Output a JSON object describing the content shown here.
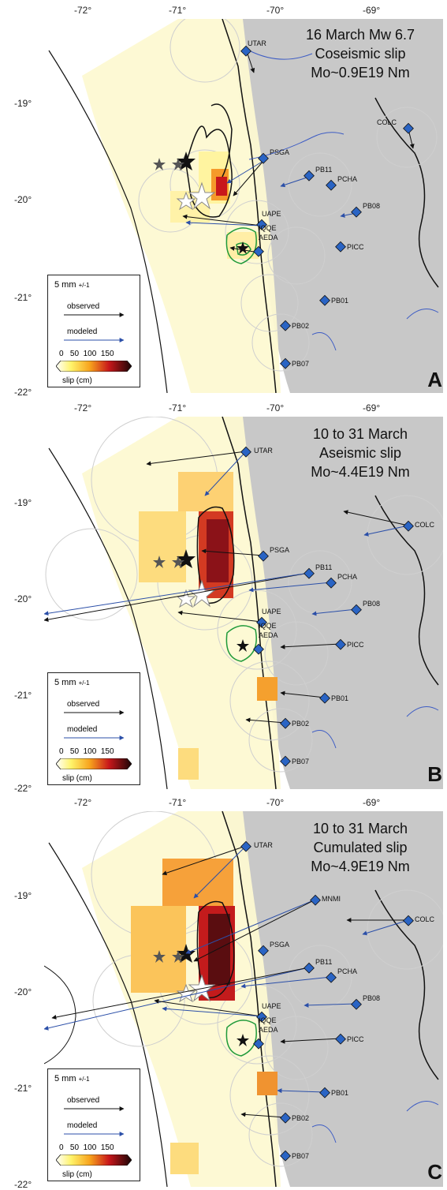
{
  "map": {
    "lon_ticks": [
      "-72°",
      "-71°",
      "-70°",
      "-69°"
    ],
    "lat_ticks": [
      "-19°",
      "-20°",
      "-21°",
      "-22°"
    ]
  },
  "legend": {
    "scale": "5 mm",
    "scale_unit": "+/-1",
    "observed_label": "observed",
    "modeled_label": "modeled",
    "colorbar_ticks": [
      "0",
      "50",
      "100",
      "150"
    ],
    "colorbar_label": "slip (cm)",
    "colors": {
      "observed": "#111111",
      "modeled": "#2b4fa8",
      "contour": "#1f9a3a",
      "station": "#2a64c4"
    }
  },
  "stations": [
    "UTAR",
    "COLC",
    "PSGA",
    "PB11",
    "PCHA",
    "PB08",
    "UAPE",
    "IQQE",
    "AEDA",
    "PICC",
    "PB01",
    "PB02",
    "PB07",
    "MNMI"
  ],
  "panels": [
    {
      "id": "A",
      "title": "16 March Mw 6.7",
      "subtitle": "Coseismic slip",
      "moment": "Mo~0.9E19 Nm",
      "letter": "A"
    },
    {
      "id": "B",
      "title": "10 to 31 March",
      "subtitle": "Aseismic slip",
      "moment": "Mo~4.4E19 Nm",
      "letter": "B"
    },
    {
      "id": "C",
      "title": "10 to 31 March",
      "subtitle": "Cumulated slip",
      "moment": "Mo~4.9E19 Nm",
      "letter": "C"
    }
  ]
}
